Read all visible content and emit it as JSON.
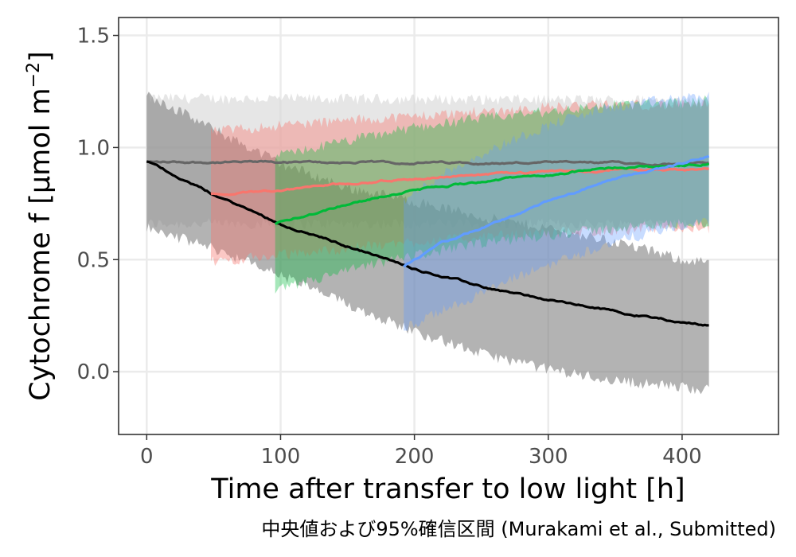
{
  "chart_data": {
    "type": "line",
    "xlabel": "Time after transfer to low light [h]",
    "ylabel_main": "Cytochrome f [μmol m",
    "ylabel_sup": "−2",
    "ylabel_close": "]",
    "caption": "中央値および95%確信区間 (Murakami et al., Submitted)",
    "xlim": [
      -21,
      472
    ],
    "ylim": [
      -0.28,
      1.58
    ],
    "x_ticks": [
      0,
      100,
      200,
      300,
      400
    ],
    "x_tick_labels": [
      "0",
      "100",
      "200",
      "300",
      "400"
    ],
    "y_ticks": [
      0.0,
      0.5,
      1.0,
      1.5
    ],
    "y_tick_labels": [
      "0.0",
      "0.5",
      "1.0",
      "1.5"
    ],
    "grid": true,
    "legend": "none",
    "series": [
      {
        "color": "#666666",
        "band_color": "#d9d9d9",
        "band_opacity": 0.65,
        "x": [
          0,
          420
        ],
        "median": [
          0.935,
          0.93
        ],
        "lower": [
          0.66,
          0.66
        ],
        "upper": [
          1.22,
          1.21
        ]
      },
      {
        "color": "#000000",
        "band_color": "#808080",
        "band_opacity": 0.6,
        "x": [
          0,
          50,
          100,
          150,
          200,
          250,
          300,
          350,
          400,
          420
        ],
        "median": [
          0.94,
          0.79,
          0.66,
          0.56,
          0.46,
          0.38,
          0.32,
          0.27,
          0.22,
          0.21
        ],
        "lower": [
          0.64,
          0.55,
          0.43,
          0.3,
          0.18,
          0.08,
          0.01,
          -0.04,
          -0.07,
          -0.08
        ],
        "upper": [
          1.24,
          1.08,
          0.93,
          0.82,
          0.76,
          0.69,
          0.64,
          0.58,
          0.5,
          0.49
        ]
      },
      {
        "color": "#f8766d",
        "band_color": "#f8766d",
        "band_opacity": 0.4,
        "x": [
          48,
          100,
          150,
          200,
          250,
          300,
          350,
          400,
          420
        ],
        "median": [
          0.79,
          0.81,
          0.84,
          0.86,
          0.88,
          0.89,
          0.9,
          0.9,
          0.9
        ],
        "lower": [
          0.49,
          0.52,
          0.55,
          0.58,
          0.6,
          0.62,
          0.63,
          0.64,
          0.64
        ],
        "upper": [
          1.07,
          1.1,
          1.12,
          1.14,
          1.16,
          1.18,
          1.19,
          1.19,
          1.19
        ]
      },
      {
        "color": "#00ba38",
        "band_color": "#00ba38",
        "band_opacity": 0.35,
        "x": [
          96,
          150,
          200,
          250,
          300,
          350,
          400,
          420
        ],
        "median": [
          0.66,
          0.75,
          0.81,
          0.85,
          0.88,
          0.91,
          0.92,
          0.93
        ],
        "lower": [
          0.36,
          0.45,
          0.52,
          0.57,
          0.61,
          0.64,
          0.66,
          0.66
        ],
        "upper": [
          0.96,
          1.03,
          1.09,
          1.13,
          1.16,
          1.19,
          1.2,
          1.21
        ]
      },
      {
        "color": "#619cff",
        "band_color": "#619cff",
        "band_opacity": 0.35,
        "x": [
          192,
          220,
          250,
          280,
          310,
          340,
          370,
          400,
          420
        ],
        "median": [
          0.47,
          0.57,
          0.64,
          0.71,
          0.78,
          0.84,
          0.89,
          0.93,
          0.96
        ],
        "lower": [
          0.19,
          0.27,
          0.35,
          0.43,
          0.5,
          0.56,
          0.61,
          0.65,
          0.67
        ],
        "upper": [
          0.76,
          0.88,
          0.97,
          1.05,
          1.12,
          1.17,
          1.2,
          1.22,
          1.23
        ]
      }
    ]
  }
}
